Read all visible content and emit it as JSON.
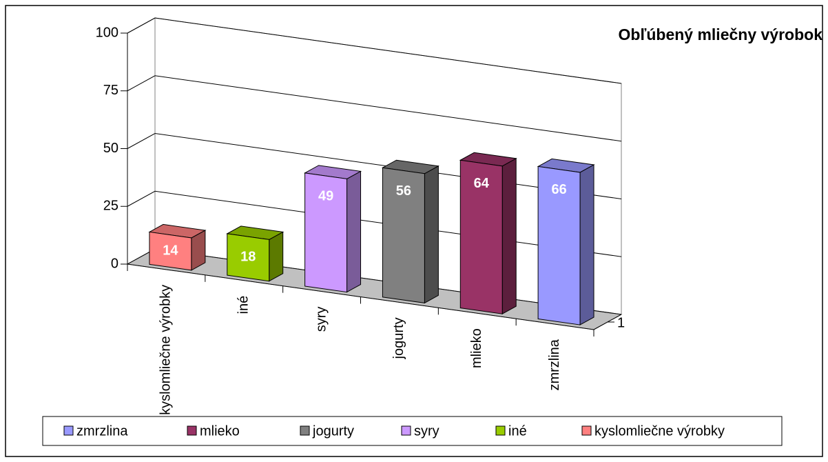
{
  "chart_data": {
    "type": "bar3d",
    "title": "Obľúbený mliečny výrobok",
    "categories": [
      "1"
    ],
    "series": [
      {
        "name": "kyslomliečne výrobky",
        "color": "#ff8080",
        "values": [
          14
        ]
      },
      {
        "name": "iné",
        "color": "#99cc00",
        "values": [
          18
        ]
      },
      {
        "name": "syry",
        "color": "#cc99ff",
        "values": [
          49
        ]
      },
      {
        "name": "jogurty",
        "color": "#808080",
        "values": [
          56
        ]
      },
      {
        "name": "mlieko",
        "color": "#993366",
        "values": [
          64
        ]
      },
      {
        "name": "zmrzlina",
        "color": "#9999ff",
        "values": [
          66
        ]
      }
    ],
    "ylim": [
      0,
      100
    ],
    "yticks": [
      0,
      25,
      50,
      75,
      100
    ],
    "grid": true,
    "legend": "bottom"
  }
}
